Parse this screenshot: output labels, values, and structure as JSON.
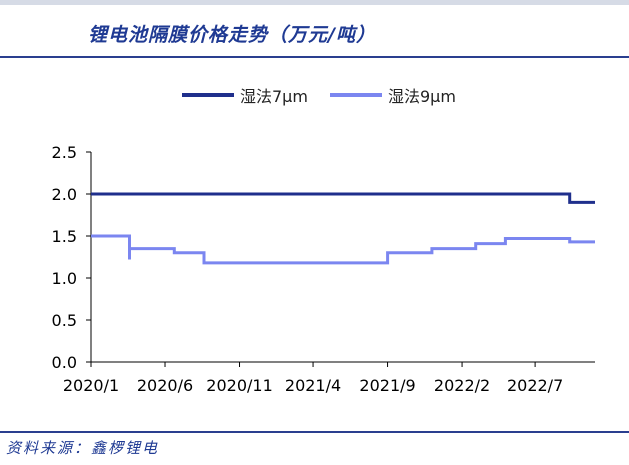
{
  "page": {
    "title": "锂电池隔膜价格走势（万元/吨）",
    "source": "资料来源：鑫椤锂电"
  },
  "colors": {
    "accent": "#1f3a93",
    "series_7um": "#1f2f8c",
    "series_9um": "#7b86f0",
    "axis": "#000000"
  },
  "chart_data": {
    "type": "line",
    "title": "锂电池隔膜价格走势（万元/吨）",
    "xlabel": "",
    "ylabel": "",
    "ylim": [
      0,
      2.5
    ],
    "yticks": [
      "0.0",
      "0.5",
      "1.0",
      "1.5",
      "2.0",
      "2.5"
    ],
    "xlim": [
      "2020-01",
      "2022-11"
    ],
    "xticks": [
      "2020/1",
      "2020/6",
      "2020/11",
      "2021/4",
      "2021/9",
      "2022/2",
      "2022/7"
    ],
    "grid": false,
    "legend_position": "top",
    "series": [
      {
        "name": "湿法7μm",
        "color": "#1f2f8c",
        "points": [
          [
            "2020-01-01",
            2.0
          ],
          [
            "2022-09-10",
            2.0
          ],
          [
            "2022-09-10",
            1.9
          ],
          [
            "2022-11-01",
            1.9
          ]
        ]
      },
      {
        "name": "湿法9μm",
        "color": "#7b86f0",
        "points": [
          [
            "2020-01-01",
            1.5
          ],
          [
            "2020-03-20",
            1.5
          ],
          [
            "2020-03-20",
            1.22
          ],
          [
            "2020-03-20",
            1.35
          ],
          [
            "2020-06-20",
            1.35
          ],
          [
            "2020-06-20",
            1.3
          ],
          [
            "2020-08-20",
            1.3
          ],
          [
            "2020-08-20",
            1.18
          ],
          [
            "2021-09-01",
            1.18
          ],
          [
            "2021-09-01",
            1.3
          ],
          [
            "2021-12-01",
            1.3
          ],
          [
            "2021-12-01",
            1.35
          ],
          [
            "2022-03-01",
            1.35
          ],
          [
            "2022-03-01",
            1.41
          ],
          [
            "2022-05-01",
            1.41
          ],
          [
            "2022-05-01",
            1.47
          ],
          [
            "2022-09-10",
            1.47
          ],
          [
            "2022-09-10",
            1.43
          ],
          [
            "2022-11-01",
            1.43
          ]
        ]
      }
    ]
  }
}
